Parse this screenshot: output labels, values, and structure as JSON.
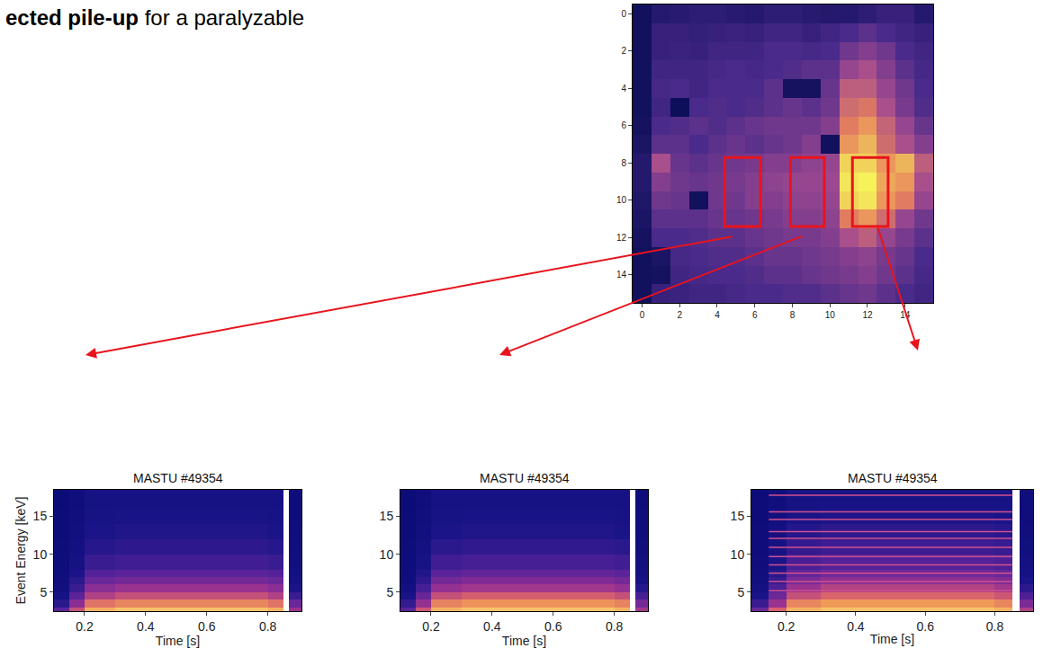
{
  "heading": {
    "bold": "ected pile-up",
    "text": "for a paralyzable"
  },
  "chart_data": [
    {
      "type": "heatmap",
      "x": [
        0,
        1,
        2,
        3,
        4,
        5,
        6,
        7,
        8,
        9,
        10,
        11,
        12,
        13,
        14,
        15
      ],
      "y": [
        0,
        1,
        2,
        3,
        4,
        5,
        6,
        7,
        8,
        9,
        10,
        11,
        12,
        13,
        14,
        15
      ],
      "cells": [
        [
          10,
          20,
          22,
          25,
          25,
          22,
          20,
          25,
          25,
          22,
          20,
          20,
          25,
          30,
          30,
          20
        ],
        [
          10,
          30,
          30,
          28,
          30,
          32,
          30,
          35,
          35,
          30,
          35,
          40,
          45,
          40,
          35,
          30
        ],
        [
          10,
          30,
          32,
          30,
          35,
          35,
          35,
          40,
          40,
          38,
          40,
          50,
          55,
          50,
          40,
          35
        ],
        [
          10,
          35,
          35,
          35,
          38,
          40,
          38,
          40,
          42,
          45,
          45,
          60,
          65,
          55,
          45,
          38
        ],
        [
          10,
          38,
          40,
          35,
          40,
          40,
          40,
          45,
          12,
          12,
          48,
          70,
          70,
          60,
          50,
          40
        ],
        [
          10,
          35,
          8,
          40,
          42,
          40,
          42,
          45,
          48,
          45,
          50,
          75,
          78,
          65,
          52,
          42
        ],
        [
          12,
          40,
          42,
          45,
          42,
          45,
          48,
          50,
          50,
          50,
          55,
          80,
          85,
          72,
          60,
          48
        ],
        [
          15,
          45,
          45,
          40,
          45,
          48,
          45,
          48,
          50,
          55,
          10,
          85,
          90,
          75,
          65,
          55
        ],
        [
          20,
          65,
          48,
          45,
          48,
          50,
          52,
          55,
          55,
          58,
          60,
          95,
          95,
          85,
          90,
          70
        ],
        [
          20,
          55,
          50,
          48,
          50,
          52,
          55,
          58,
          60,
          60,
          62,
          98,
          100,
          88,
          85,
          65
        ],
        [
          18,
          50,
          48,
          10,
          50,
          50,
          55,
          55,
          58,
          58,
          60,
          95,
          98,
          85,
          80,
          60
        ],
        [
          15,
          45,
          45,
          45,
          48,
          48,
          50,
          52,
          55,
          55,
          58,
          80,
          85,
          75,
          60,
          50
        ],
        [
          12,
          40,
          40,
          42,
          45,
          45,
          48,
          50,
          52,
          52,
          55,
          65,
          70,
          60,
          52,
          45
        ],
        [
          10,
          15,
          38,
          40,
          42,
          42,
          45,
          48,
          48,
          50,
          52,
          55,
          58,
          52,
          48,
          40
        ],
        [
          10,
          12,
          35,
          38,
          40,
          40,
          42,
          45,
          45,
          48,
          50,
          52,
          55,
          50,
          45,
          38
        ],
        [
          10,
          30,
          32,
          35,
          35,
          38,
          40,
          40,
          42,
          42,
          45,
          48,
          50,
          45,
          40,
          35
        ]
      ],
      "xlim": [
        -0.5,
        15.5
      ],
      "ylim": [
        15.5,
        -0.5
      ],
      "xticks": [
        0,
        2,
        4,
        6,
        8,
        10,
        12,
        14
      ],
      "yticks": [
        0,
        2,
        4,
        6,
        8,
        10,
        12,
        14
      ],
      "highlights": [
        {
          "x0": 4.4,
          "x1": 6.3,
          "y0": 7.7,
          "y1": 11.4
        },
        {
          "x0": 7.9,
          "x1": 9.7,
          "y0": 7.7,
          "y1": 11.4
        },
        {
          "x0": 11.2,
          "x1": 13.1,
          "y0": 7.7,
          "y1": 11.4
        }
      ]
    },
    {
      "type": "heatmap",
      "title": "MASTU #49354",
      "xlabel": "Time [s]",
      "ylabel": "Event Energy [keV]",
      "x_edges": [
        0.1,
        0.15,
        0.2,
        0.3,
        0.4,
        0.5,
        0.6,
        0.7,
        0.8,
        0.85,
        0.87,
        0.91
      ],
      "y_edges": [
        2.5,
        3,
        4,
        5,
        6,
        7,
        8,
        10,
        12,
        14,
        16,
        18.5
      ],
      "cells": [
        [
          40,
          70,
          95,
          100,
          100,
          100,
          100,
          100,
          95,
          0,
          60
        ],
        [
          25,
          55,
          80,
          85,
          85,
          85,
          85,
          85,
          80,
          0,
          45
        ],
        [
          15,
          40,
          65,
          70,
          70,
          70,
          70,
          70,
          65,
          0,
          30
        ],
        [
          10,
          30,
          55,
          60,
          60,
          60,
          60,
          60,
          55,
          0,
          20
        ],
        [
          8,
          25,
          45,
          48,
          48,
          48,
          48,
          48,
          45,
          0,
          15
        ],
        [
          6,
          20,
          38,
          40,
          40,
          40,
          40,
          40,
          38,
          0,
          12
        ],
        [
          5,
          15,
          30,
          32,
          32,
          32,
          32,
          32,
          30,
          0,
          10
        ],
        [
          4,
          12,
          24,
          26,
          26,
          26,
          26,
          26,
          24,
          0,
          8
        ],
        [
          3,
          10,
          20,
          22,
          22,
          22,
          22,
          22,
          20,
          0,
          6
        ],
        [
          3,
          8,
          17,
          18,
          18,
          18,
          18,
          18,
          17,
          0,
          5
        ],
        [
          2,
          7,
          15,
          16,
          16,
          16,
          16,
          16,
          15,
          0,
          5
        ]
      ],
      "xlim": [
        0.1,
        0.91
      ],
      "ylim": [
        2.5,
        18.5
      ],
      "xticks": [
        0.2,
        0.4,
        0.6,
        0.8
      ],
      "yticks": [
        5,
        10,
        15
      ]
    },
    {
      "type": "heatmap",
      "title": "MASTU #49354",
      "xlabel": "Time [s]",
      "x_edges": [
        0.1,
        0.15,
        0.2,
        0.3,
        0.4,
        0.5,
        0.6,
        0.7,
        0.8,
        0.85,
        0.87,
        0.91
      ],
      "y_edges": [
        2.5,
        3,
        4,
        5,
        6,
        7,
        8,
        10,
        12,
        14,
        16,
        18.5
      ],
      "cells": [
        [
          40,
          72,
          96,
          100,
          100,
          100,
          100,
          100,
          96,
          0,
          62
        ],
        [
          28,
          58,
          84,
          88,
          88,
          88,
          88,
          88,
          84,
          0,
          48
        ],
        [
          18,
          44,
          70,
          74,
          74,
          74,
          74,
          74,
          70,
          0,
          34
        ],
        [
          12,
          34,
          58,
          62,
          62,
          62,
          62,
          62,
          58,
          0,
          24
        ],
        [
          9,
          27,
          48,
          52,
          52,
          52,
          52,
          52,
          48,
          0,
          18
        ],
        [
          7,
          22,
          40,
          43,
          43,
          43,
          43,
          43,
          40,
          0,
          14
        ],
        [
          5,
          17,
          32,
          34,
          34,
          34,
          34,
          34,
          32,
          0,
          11
        ],
        [
          4,
          13,
          25,
          27,
          27,
          27,
          27,
          27,
          25,
          0,
          9
        ],
        [
          3,
          10,
          20,
          22,
          22,
          22,
          22,
          22,
          20,
          0,
          7
        ],
        [
          3,
          9,
          17,
          18,
          18,
          18,
          18,
          18,
          17,
          0,
          6
        ],
        [
          2,
          7,
          15,
          16,
          16,
          16,
          16,
          16,
          15,
          0,
          5
        ]
      ],
      "xlim": [
        0.1,
        0.91
      ],
      "ylim": [
        2.5,
        18.5
      ],
      "xticks": [
        0.2,
        0.4,
        0.6,
        0.8
      ],
      "yticks": [
        5,
        10,
        15
      ]
    },
    {
      "type": "heatmap",
      "title": "MASTU #49354",
      "xlabel": "Time [s]",
      "x_edges": [
        0.1,
        0.15,
        0.2,
        0.3,
        0.4,
        0.5,
        0.6,
        0.7,
        0.8,
        0.85,
        0.87,
        0.91
      ],
      "y_edges": [
        2.5,
        3,
        4,
        5,
        6,
        7,
        8,
        10,
        12,
        14,
        16,
        18.5
      ],
      "cells": [
        [
          45,
          75,
          96,
          100,
          100,
          100,
          100,
          100,
          96,
          0,
          65
        ],
        [
          30,
          60,
          85,
          90,
          90,
          90,
          90,
          90,
          85,
          0,
          50
        ],
        [
          20,
          46,
          70,
          76,
          76,
          76,
          76,
          76,
          72,
          0,
          36
        ],
        [
          14,
          36,
          60,
          66,
          66,
          66,
          66,
          66,
          62,
          0,
          26
        ],
        [
          10,
          29,
          50,
          56,
          56,
          56,
          56,
          56,
          52,
          0,
          20
        ],
        [
          8,
          24,
          42,
          47,
          47,
          47,
          47,
          47,
          44,
          0,
          16
        ],
        [
          6,
          19,
          35,
          38,
          38,
          38,
          38,
          38,
          36,
          0,
          13
        ],
        [
          5,
          15,
          28,
          31,
          31,
          31,
          31,
          31,
          29,
          0,
          10
        ],
        [
          4,
          12,
          23,
          26,
          26,
          26,
          26,
          26,
          24,
          0,
          8
        ],
        [
          3,
          10,
          19,
          21,
          21,
          21,
          21,
          21,
          20,
          0,
          7
        ],
        [
          3,
          8,
          17,
          18,
          18,
          18,
          18,
          18,
          17,
          0,
          6
        ]
      ],
      "pileup_lines": {
        "t": [
          0.15,
          0.85
        ],
        "energies": [
          5.2,
          6.4,
          7.5,
          8.6,
          9.7,
          10.9,
          12.1,
          13.0,
          14.6,
          15.6,
          17.8
        ]
      },
      "xlim": [
        0.1,
        0.91
      ],
      "ylim": [
        2.5,
        18.5
      ],
      "xticks": [
        0.2,
        0.4,
        0.6,
        0.8
      ],
      "yticks": [
        5,
        10,
        15
      ]
    }
  ]
}
